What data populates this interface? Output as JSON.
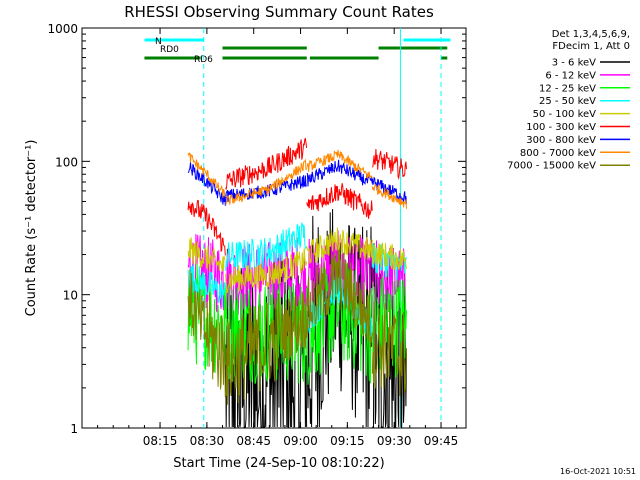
{
  "chart_data": {
    "type": "line",
    "title": "RHESSI Observing Summary Count Rates",
    "xlabel": "Start Time (24-Sep-10 08:10:22)",
    "ylabel": "Count Rate (s⁻¹ detector⁻¹)",
    "ylim": [
      1,
      1000
    ],
    "xlim_minutes": [
      470,
      593
    ],
    "y_scale": "log",
    "x_ticks": [
      "08:15",
      "08:30",
      "08:45",
      "09:00",
      "09:15",
      "09:30",
      "09:45"
    ],
    "y_ticks": [
      "1",
      "10",
      "100",
      "1000"
    ],
    "legend_header": [
      "Det 1,3,4,5,6,9,",
      "FDecim 1, Att 0"
    ],
    "legend_position": "right",
    "timestamp": "16-Oct-2021 10:51",
    "flags": [
      {
        "name": "N",
        "color": "#00ffff",
        "segments": [
          [
            "08:10",
            "08:29"
          ],
          [
            "09:33",
            "09:48"
          ]
        ]
      },
      {
        "name": "RD0",
        "color": "#008000",
        "segments": [
          [
            "08:35",
            "09:02"
          ],
          [
            "09:25",
            "09:47"
          ]
        ]
      },
      {
        "name": "RD6",
        "color": "#008000",
        "segments": [
          [
            "08:10",
            "08:28"
          ],
          [
            "08:35",
            "09:02"
          ],
          [
            "09:03",
            "09:25"
          ],
          [
            "09:45",
            "09:47"
          ]
        ]
      }
    ],
    "day_night_boundaries": [
      {
        "time": "08:29",
        "style": "dashed",
        "color": "#00ffff"
      },
      {
        "time": "09:32",
        "style": "solid",
        "color": "#00ffff"
      },
      {
        "time": "09:45",
        "style": "dashed",
        "color": "#00ffff"
      }
    ],
    "series": [
      {
        "name": "3 - 6 keV",
        "color": "#000000",
        "noise": 0.75,
        "segments": [
          {
            "times": [
              "08:36",
              "09:02"
            ],
            "values": [
              2.0,
              2.5
            ]
          },
          {
            "times": [
              "09:02",
              "09:12",
              "09:23"
            ],
            "values": [
              3.2,
              10.5,
              3.5
            ]
          },
          {
            "times": [
              "09:23",
              "09:34"
            ],
            "values": [
              3.5,
              1.6
            ]
          }
        ]
      },
      {
        "name": "6 - 12 keV",
        "color": "#ff00ff",
        "noise": 0.28,
        "segments": [
          {
            "times": [
              "08:24",
              "08:36"
            ],
            "values": [
              16,
              13
            ]
          },
          {
            "times": [
              "08:36",
              "09:02"
            ],
            "values": [
              13,
              14
            ]
          },
          {
            "times": [
              "09:02",
              "09:12",
              "09:23"
            ],
            "values": [
              14,
              16,
              14
            ]
          },
          {
            "times": [
              "09:23",
              "09:34"
            ],
            "values": [
              14,
              12
            ]
          }
        ]
      },
      {
        "name": "12 - 25 keV",
        "color": "#00ff00",
        "noise": 0.4,
        "segments": [
          {
            "times": [
              "08:24",
              "08:30",
              "08:36"
            ],
            "values": [
              7.5,
              6.8,
              5.5
            ]
          },
          {
            "times": [
              "08:36",
              "09:02"
            ],
            "values": [
              5.5,
              5.2
            ]
          },
          {
            "times": [
              "09:02",
              "09:12",
              "09:23"
            ],
            "values": [
              5.0,
              8.0,
              5.2
            ]
          },
          {
            "times": [
              "09:23",
              "09:34"
            ],
            "values": [
              6.0,
              6.0
            ]
          }
        ]
      },
      {
        "name": "25 - 50 keV",
        "color": "#00ffff",
        "noise": 0.12,
        "segments": [
          {
            "times": [
              "08:24",
              "08:36"
            ],
            "values": [
              14,
              10
            ]
          },
          {
            "times": [
              "08:36",
              "08:50",
              "09:02"
            ],
            "values": [
              19,
              21,
              29
            ]
          },
          {
            "times": [
              "09:02",
              "09:12",
              "09:23"
            ],
            "values": [
              6.5,
              11.5,
              5.5
            ]
          },
          {
            "times": [
              "09:23",
              "09:34"
            ],
            "values": [
              19,
              16
            ]
          }
        ]
      },
      {
        "name": "50 - 100 keV",
        "color": "#cccc00",
        "noise": 0.1,
        "segments": [
          {
            "times": [
              "08:24",
              "08:36"
            ],
            "values": [
              22,
              16
            ]
          },
          {
            "times": [
              "08:36",
              "08:50",
              "09:02"
            ],
            "values": [
              13,
              14,
              18
            ]
          },
          {
            "times": [
              "09:02",
              "09:12",
              "09:23"
            ],
            "values": [
              20,
              26,
              21
            ]
          },
          {
            "times": [
              "09:23",
              "09:34"
            ],
            "values": [
              21,
              18
            ]
          }
        ]
      },
      {
        "name": "100 - 300 keV",
        "color": "#ff0000",
        "noise": 0.08,
        "segments": [
          {
            "times": [
              "08:24",
              "08:30",
              "08:36"
            ],
            "values": [
              50,
              38,
              22
            ]
          },
          {
            "times": [
              "08:36",
              "08:50",
              "09:02"
            ],
            "values": [
              70,
              90,
              130
            ]
          },
          {
            "times": [
              "09:02",
              "09:12",
              "09:23"
            ],
            "values": [
              46,
              60,
              42
            ]
          },
          {
            "times": [
              "09:23",
              "09:34"
            ],
            "values": [
              108,
              85
            ]
          }
        ]
      },
      {
        "name": "300 - 800 keV",
        "color": "#0000ff",
        "noise": 0.05,
        "segments": [
          {
            "times": [
              "08:24",
              "08:30",
              "08:36"
            ],
            "values": [
              92,
              70,
              50
            ]
          },
          {
            "times": [
              "08:36",
              "08:50",
              "09:02"
            ],
            "values": [
              55,
              60,
              72
            ]
          },
          {
            "times": [
              "09:02",
              "09:12",
              "09:23"
            ],
            "values": [
              72,
              92,
              68
            ]
          },
          {
            "times": [
              "09:23",
              "09:34"
            ],
            "values": [
              70,
              53
            ]
          }
        ]
      },
      {
        "name": "800 - 7000 keV",
        "color": "#ff8800",
        "noise": 0.04,
        "segments": [
          {
            "times": [
              "08:24",
              "08:30",
              "08:36"
            ],
            "values": [
              110,
              80,
              55
            ]
          },
          {
            "times": [
              "08:36",
              "08:50",
              "09:02"
            ],
            "values": [
              50,
              62,
              95
            ]
          },
          {
            "times": [
              "09:02",
              "09:12",
              "09:23"
            ],
            "values": [
              90,
              112,
              75
            ]
          },
          {
            "times": [
              "09:23",
              "09:34"
            ],
            "values": [
              65,
              48
            ]
          }
        ]
      },
      {
        "name": "7000 - 15000 keV",
        "color": "#808000",
        "noise": 0.25,
        "segments": [
          {
            "times": [
              "08:24",
              "08:30",
              "08:36"
            ],
            "values": [
              9.5,
              5.0,
              3.5
            ]
          },
          {
            "times": [
              "08:36",
              "08:50",
              "09:02"
            ],
            "values": [
              3.0,
              4.5,
              7.0
            ]
          },
          {
            "times": [
              "09:02",
              "09:12",
              "09:23"
            ],
            "values": [
              7.5,
              14,
              6.0
            ]
          },
          {
            "times": [
              "09:23",
              "09:34"
            ],
            "values": [
              4.5,
              3.5
            ]
          }
        ]
      }
    ]
  }
}
